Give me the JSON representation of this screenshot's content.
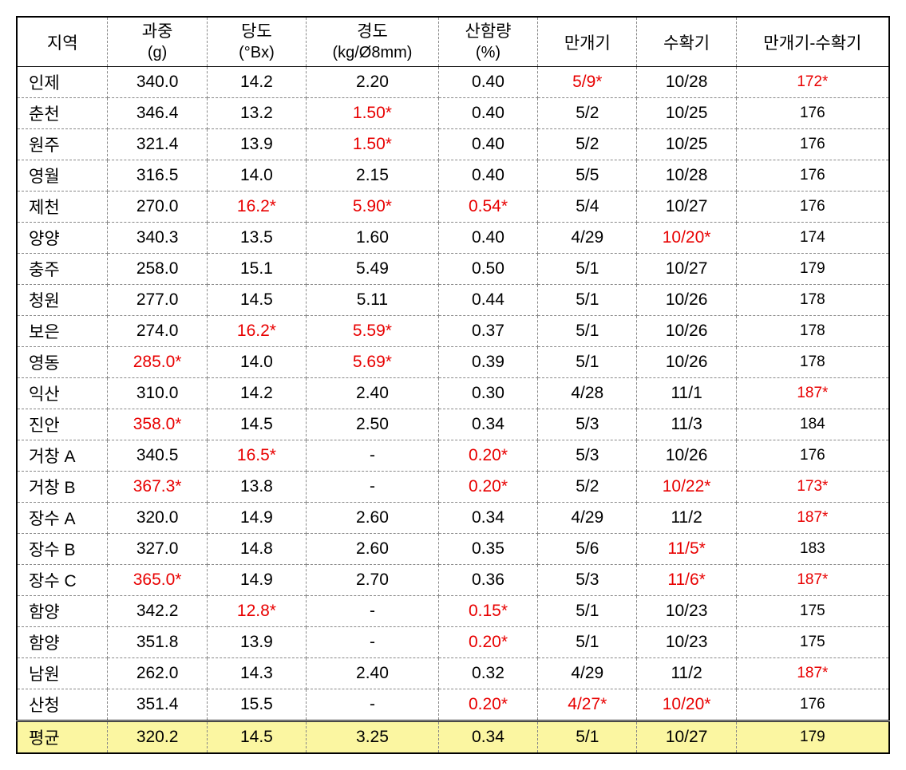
{
  "columns": [
    {
      "l1": "지역",
      "l2": ""
    },
    {
      "l1": "과중",
      "l2": "(g)"
    },
    {
      "l1": "당도",
      "l2": "(°Bx)"
    },
    {
      "l1": "경도",
      "l2": "(kg/Ø8mm)"
    },
    {
      "l1": "산함량",
      "l2": "(%)"
    },
    {
      "l1": "만개기",
      "l2": ""
    },
    {
      "l1": "수확기",
      "l2": ""
    },
    {
      "l1": "만개기-수확기",
      "l2": ""
    }
  ],
  "rows": [
    {
      "region": "인제",
      "cells": [
        {
          "v": "340.0"
        },
        {
          "v": "14.2"
        },
        {
          "v": "2.20"
        },
        {
          "v": "0.40"
        },
        {
          "v": "5/9*",
          "red": true
        },
        {
          "v": "10/28"
        },
        {
          "v": "172*",
          "red": true
        }
      ]
    },
    {
      "region": "춘천",
      "cells": [
        {
          "v": "346.4"
        },
        {
          "v": "13.2"
        },
        {
          "v": "1.50*",
          "red": true
        },
        {
          "v": "0.40"
        },
        {
          "v": "5/2"
        },
        {
          "v": "10/25"
        },
        {
          "v": "176"
        }
      ]
    },
    {
      "region": "원주",
      "cells": [
        {
          "v": "321.4"
        },
        {
          "v": "13.9"
        },
        {
          "v": "1.50*",
          "red": true
        },
        {
          "v": "0.40"
        },
        {
          "v": "5/2"
        },
        {
          "v": "10/25"
        },
        {
          "v": "176"
        }
      ]
    },
    {
      "region": "영월",
      "cells": [
        {
          "v": "316.5"
        },
        {
          "v": "14.0"
        },
        {
          "v": "2.15"
        },
        {
          "v": "0.40"
        },
        {
          "v": "5/5"
        },
        {
          "v": "10/28"
        },
        {
          "v": "176"
        }
      ]
    },
    {
      "region": "제천",
      "cells": [
        {
          "v": "270.0"
        },
        {
          "v": "16.2*",
          "red": true
        },
        {
          "v": "5.90*",
          "red": true
        },
        {
          "v": "0.54*",
          "red": true
        },
        {
          "v": "5/4"
        },
        {
          "v": "10/27"
        },
        {
          "v": "176"
        }
      ]
    },
    {
      "region": "양양",
      "cells": [
        {
          "v": "340.3"
        },
        {
          "v": "13.5"
        },
        {
          "v": "1.60"
        },
        {
          "v": "0.40"
        },
        {
          "v": "4/29"
        },
        {
          "v": "10/20*",
          "red": true
        },
        {
          "v": "174"
        }
      ]
    },
    {
      "region": "충주",
      "cells": [
        {
          "v": "258.0"
        },
        {
          "v": "15.1"
        },
        {
          "v": "5.49"
        },
        {
          "v": "0.50"
        },
        {
          "v": "5/1"
        },
        {
          "v": "10/27"
        },
        {
          "v": "179"
        }
      ]
    },
    {
      "region": "청원",
      "cells": [
        {
          "v": "277.0"
        },
        {
          "v": "14.5"
        },
        {
          "v": "5.11"
        },
        {
          "v": "0.44"
        },
        {
          "v": "5/1"
        },
        {
          "v": "10/26"
        },
        {
          "v": "178"
        }
      ]
    },
    {
      "region": "보은",
      "cells": [
        {
          "v": "274.0"
        },
        {
          "v": "16.2*",
          "red": true
        },
        {
          "v": "5.59*",
          "red": true
        },
        {
          "v": "0.37"
        },
        {
          "v": "5/1"
        },
        {
          "v": "10/26"
        },
        {
          "v": "178"
        }
      ]
    },
    {
      "region": "영동",
      "cells": [
        {
          "v": "285.0*",
          "red": true
        },
        {
          "v": "14.0"
        },
        {
          "v": "5.69*",
          "red": true
        },
        {
          "v": "0.39"
        },
        {
          "v": "5/1"
        },
        {
          "v": "10/26"
        },
        {
          "v": "178"
        }
      ]
    },
    {
      "region": "익산",
      "cells": [
        {
          "v": "310.0"
        },
        {
          "v": "14.2"
        },
        {
          "v": "2.40"
        },
        {
          "v": "0.30"
        },
        {
          "v": "4/28"
        },
        {
          "v": "11/1"
        },
        {
          "v": "187*",
          "red": true
        }
      ]
    },
    {
      "region": "진안",
      "cells": [
        {
          "v": "358.0*",
          "red": true
        },
        {
          "v": "14.5"
        },
        {
          "v": "2.50"
        },
        {
          "v": "0.34"
        },
        {
          "v": "5/3"
        },
        {
          "v": "11/3"
        },
        {
          "v": "184"
        }
      ]
    },
    {
      "region": "거창 A",
      "cells": [
        {
          "v": "340.5"
        },
        {
          "v": "16.5*",
          "red": true
        },
        {
          "v": "-"
        },
        {
          "v": "0.20*",
          "red": true
        },
        {
          "v": "5/3"
        },
        {
          "v": "10/26"
        },
        {
          "v": "176"
        }
      ]
    },
    {
      "region": "거창 B",
      "cells": [
        {
          "v": "367.3*",
          "red": true
        },
        {
          "v": "13.8"
        },
        {
          "v": "-"
        },
        {
          "v": "0.20*",
          "red": true
        },
        {
          "v": "5/2"
        },
        {
          "v": "10/22*",
          "red": true
        },
        {
          "v": "173*",
          "red": true
        }
      ]
    },
    {
      "region": "장수 A",
      "cells": [
        {
          "v": "320.0"
        },
        {
          "v": "14.9"
        },
        {
          "v": "2.60"
        },
        {
          "v": "0.34"
        },
        {
          "v": "4/29"
        },
        {
          "v": "11/2"
        },
        {
          "v": "187*",
          "red": true
        }
      ]
    },
    {
      "region": "장수 B",
      "cells": [
        {
          "v": "327.0"
        },
        {
          "v": "14.8"
        },
        {
          "v": "2.60"
        },
        {
          "v": "0.35"
        },
        {
          "v": "5/6"
        },
        {
          "v": "11/5*",
          "red": true
        },
        {
          "v": "183"
        }
      ]
    },
    {
      "region": "장수 C",
      "cells": [
        {
          "v": "365.0*",
          "red": true
        },
        {
          "v": "14.9"
        },
        {
          "v": "2.70"
        },
        {
          "v": "0.36"
        },
        {
          "v": "5/3"
        },
        {
          "v": "11/6*",
          "red": true
        },
        {
          "v": "187*",
          "red": true
        }
      ]
    },
    {
      "region": "함양",
      "cells": [
        {
          "v": "342.2"
        },
        {
          "v": "12.8*",
          "red": true
        },
        {
          "v": "-"
        },
        {
          "v": "0.15*",
          "red": true
        },
        {
          "v": "5/1"
        },
        {
          "v": "10/23"
        },
        {
          "v": "175"
        }
      ]
    },
    {
      "region": "함양",
      "cells": [
        {
          "v": "351.8"
        },
        {
          "v": "13.9"
        },
        {
          "v": "-"
        },
        {
          "v": "0.20*",
          "red": true
        },
        {
          "v": "5/1"
        },
        {
          "v": "10/23"
        },
        {
          "v": "175"
        }
      ]
    },
    {
      "region": "남원",
      "cells": [
        {
          "v": "262.0"
        },
        {
          "v": "14.3"
        },
        {
          "v": "2.40"
        },
        {
          "v": "0.32"
        },
        {
          "v": "4/29"
        },
        {
          "v": "11/2"
        },
        {
          "v": "187*",
          "red": true
        }
      ]
    },
    {
      "region": "산청",
      "cells": [
        {
          "v": "351.4"
        },
        {
          "v": "15.5"
        },
        {
          "v": "-"
        },
        {
          "v": "0.20*",
          "red": true
        },
        {
          "v": "4/27*",
          "red": true
        },
        {
          "v": "10/20*",
          "red": true
        },
        {
          "v": "176"
        }
      ]
    }
  ],
  "footer": {
    "region": "평균",
    "cells": [
      {
        "v": "320.2"
      },
      {
        "v": "14.5"
      },
      {
        "v": "3.25"
      },
      {
        "v": "0.34"
      },
      {
        "v": "5/1"
      },
      {
        "v": "10/27"
      },
      {
        "v": "179"
      }
    ]
  },
  "colors": {
    "highlight_bg": "#fbf6a1",
    "red": "#e80000",
    "text": "#000000"
  }
}
